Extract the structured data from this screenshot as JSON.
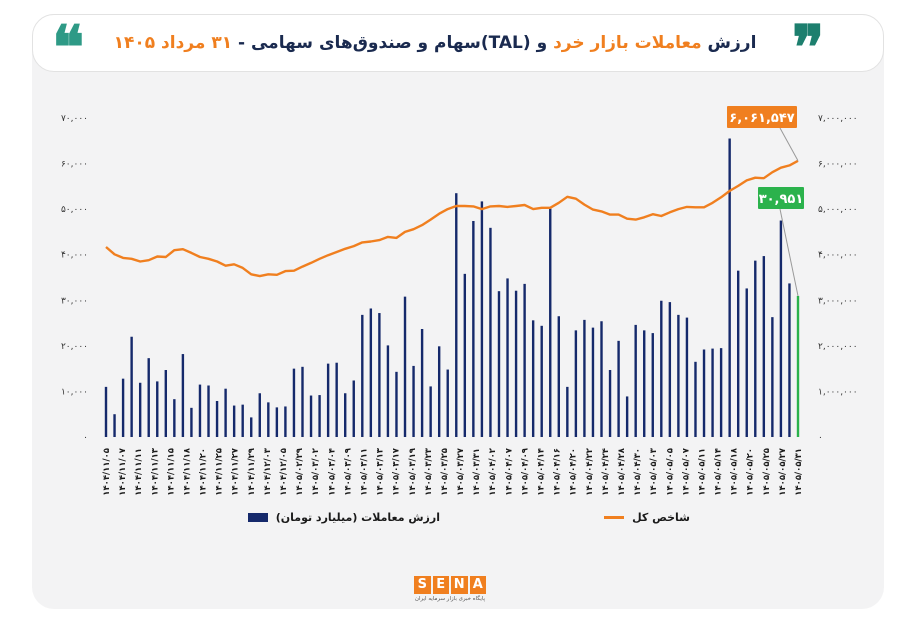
{
  "header": {
    "title_part1": "ارزش ",
    "title_highlight": "معاملات بازار خرد",
    "title_part2": " و (TAL)سهام و صندوق‌های سهامی - ",
    "title_date": "۳۱ مرداد ۱۴۰۵",
    "quote_open": "❞",
    "quote_close": "❝"
  },
  "logo": {
    "letters": [
      "S",
      "E",
      "N",
      "A"
    ],
    "tagline": "پایگاه خبری بازار سرمایه ایران"
  },
  "colors": {
    "bars": "#15296b",
    "last_bar": "#2bb24c",
    "line": "#f07f1f",
    "background": "#f3f3f4"
  },
  "chart_data": {
    "type": "bar+line",
    "y_left": {
      "ylim": [
        0,
        70000
      ],
      "ticks": [
        "۰",
        "۱۰,۰۰۰",
        "۲۰,۰۰۰",
        "۳۰,۰۰۰",
        "۴۰,۰۰۰",
        "۵۰,۰۰۰",
        "۶۰,۰۰۰",
        "۷۰,۰۰۰"
      ]
    },
    "y_right": {
      "ylim": [
        0,
        7000000
      ],
      "ticks": [
        "۰",
        "۱,۰۰۰,۰۰۰",
        "۲,۰۰۰,۰۰۰",
        "۳,۰۰۰,۰۰۰",
        "۴,۰۰۰,۰۰۰",
        "۵,۰۰۰,۰۰۰",
        "۶,۰۰۰,۰۰۰",
        "۷,۰۰۰,۰۰۰"
      ]
    },
    "x_tick_labels": [
      "۱۴۰۴/۱۱/۰۵",
      "۱۴۰۴/۱۱/۰۷",
      "۱۴۰۴/۱۱/۱۱",
      "۱۴۰۴/۱۱/۱۳",
      "۱۴۰۴/۱۱/۱۵",
      "۱۴۰۴/۱۱/۱۸",
      "۱۴۰۴/۱۱/۲۰",
      "۱۴۰۴/۱۱/۲۵",
      "۱۴۰۴/۱۱/۲۷",
      "۱۴۰۴/۱۱/۲۹",
      "۱۴۰۴/۱۲/۰۳",
      "۱۴۰۴/۱۲/۰۵",
      "۱۴۰۵/۰۲/۲۹",
      "۱۴۰۵/۰۳/۰۲",
      "۱۴۰۵/۰۳/۰۴",
      "۱۴۰۵/۰۳/۰۹",
      "۱۴۰۵/۰۳/۱۱",
      "۱۴۰۵/۰۳/۱۳",
      "۱۴۰۵/۰۳/۱۷",
      "۱۴۰۵/۰۳/۱۹",
      "۱۴۰۵/۰۳/۲۳",
      "۱۴۰۵/۰۳/۲۵",
      "۱۴۰۵/۰۳/۲۷",
      "۱۴۰۵/۰۳/۳۱",
      "۱۴۰۵/۰۴/۰۲",
      "۱۴۰۵/۰۴/۰۷",
      "۱۴۰۵/۰۴/۰۹",
      "۱۴۰۵/۰۴/۱۴",
      "۱۴۰۵/۰۴/۱۶",
      "۱۴۰۵/۰۴/۲۰",
      "۱۴۰۵/۰۴/۲۲",
      "۱۴۰۵/۰۴/۲۴",
      "۱۴۰۵/۰۴/۲۸",
      "۱۴۰۵/۰۴/۳۰",
      "۱۴۰۵/۰۵/۰۳",
      "۱۴۰۵/۰۵/۰۵",
      "۱۴۰۵/۰۵/۰۷",
      "۱۴۰۵/۰۵/۱۱",
      "۱۴۰۵/۰۵/۱۴",
      "۱۴۰۵/۰۵/۱۸",
      "۱۴۰۵/۰۵/۲۰",
      "۱۴۰۵/۰۵/۲۵",
      "۱۴۰۵/۰۵/۲۷",
      "۱۴۰۵/۰۵/۳۱"
    ],
    "bars": {
      "name": "ارزش معاملات (میلیارد تومان)",
      "values": [
        11000,
        5000,
        12800,
        22000,
        11900,
        17300,
        12200,
        14700,
        8300,
        18200,
        6400,
        11500,
        11300,
        7900,
        10600,
        6900,
        7100,
        4300,
        9600,
        7600,
        6500,
        6700,
        15000,
        15400,
        9100,
        9200,
        16100,
        16300,
        9600,
        12400,
        26800,
        28200,
        27200,
        20100,
        14300,
        30800,
        15600,
        23700,
        11100,
        19900,
        14800,
        53500,
        35800,
        47400,
        51700,
        45900,
        32000,
        34800,
        32100,
        33600,
        25600,
        24400,
        50100,
        26500,
        11000,
        23400,
        25700,
        24000,
        25400,
        14700,
        21100,
        8900,
        24600,
        23400,
        22800,
        29900,
        29600,
        26800,
        26200,
        16500,
        19200,
        19400,
        19500,
        65500,
        36500,
        32600,
        38700,
        39700,
        26300,
        47500,
        33700,
        30951
      ]
    },
    "line": {
      "name": "شاخص کل",
      "values": [
        4170000,
        4010000,
        3930000,
        3910000,
        3850000,
        3880000,
        3960000,
        3950000,
        4100000,
        4120000,
        4040000,
        3950000,
        3910000,
        3850000,
        3760000,
        3790000,
        3710000,
        3570000,
        3530000,
        3570000,
        3560000,
        3640000,
        3650000,
        3740000,
        3820000,
        3910000,
        3990000,
        4060000,
        4130000,
        4190000,
        4270000,
        4290000,
        4320000,
        4390000,
        4370000,
        4500000,
        4560000,
        4650000,
        4770000,
        4900000,
        5000000,
        5070000,
        5070000,
        5060000,
        5000000,
        5060000,
        5070000,
        5050000,
        5070000,
        5090000,
        5000000,
        5030000,
        5030000,
        5140000,
        5270000,
        5230000,
        5100000,
        4990000,
        4950000,
        4880000,
        4880000,
        4790000,
        4770000,
        4820000,
        4890000,
        4850000,
        4930000,
        5000000,
        5050000,
        5040000,
        5040000,
        5140000,
        5260000,
        5400000,
        5510000,
        5630000,
        5690000,
        5680000,
        5810000,
        5910000,
        5960000,
        6061547
      ]
    },
    "annotations": [
      {
        "label": "۶,۰۶۱,۵۴۷",
        "series": "line",
        "point": "last"
      },
      {
        "label": "۳۰,۹۵۱",
        "series": "bars",
        "point": "last"
      }
    ],
    "legend": [
      {
        "label": "ارزش معاملات (میلیارد تومان)",
        "swatch": "bar"
      },
      {
        "label": "شاخص کل",
        "swatch": "line"
      }
    ],
    "legend_position": "bottom",
    "grid": false
  }
}
